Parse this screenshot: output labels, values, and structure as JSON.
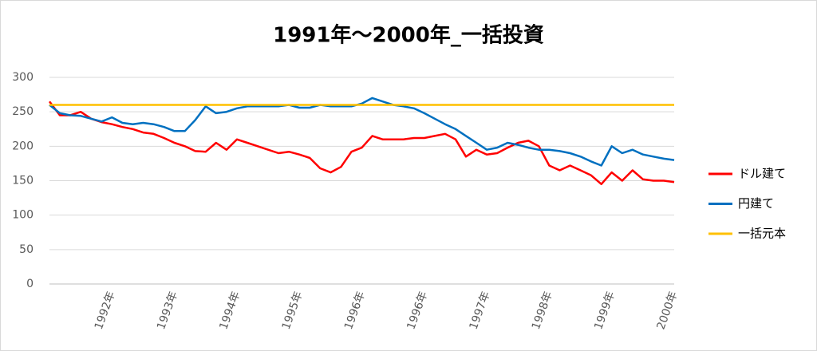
{
  "chart_data": {
    "type": "line",
    "title": "1991年～2000年_一括投資",
    "categories": [
      null,
      null,
      null,
      null,
      null,
      null,
      "1992年",
      null,
      null,
      null,
      null,
      null,
      "1993年",
      null,
      null,
      null,
      null,
      null,
      "1994年",
      null,
      null,
      null,
      null,
      null,
      "1995年",
      null,
      null,
      null,
      null,
      null,
      "1996年",
      null,
      null,
      null,
      null,
      null,
      "1996年",
      null,
      null,
      null,
      null,
      null,
      "1997年",
      null,
      null,
      null,
      null,
      null,
      "1998年",
      null,
      null,
      null,
      null,
      null,
      "1999年",
      null,
      null,
      null,
      null,
      null,
      "2000年"
    ],
    "series": [
      {
        "name": "ドル建て",
        "color": "#ff0000",
        "values": [
          265,
          245,
          245,
          250,
          240,
          235,
          232,
          228,
          225,
          220,
          218,
          212,
          205,
          200,
          193,
          192,
          205,
          195,
          210,
          205,
          200,
          195,
          190,
          192,
          188,
          183,
          168,
          162,
          170,
          192,
          198,
          215,
          210,
          210,
          210,
          212,
          212,
          215,
          218,
          210,
          185,
          195,
          188,
          190,
          198,
          205,
          208,
          200,
          172,
          165,
          172,
          165,
          158,
          145,
          162,
          150,
          165,
          152,
          150,
          150,
          148
        ]
      },
      {
        "name": "円建て",
        "color": "#0070c0",
        "values": [
          260,
          248,
          245,
          244,
          240,
          236,
          242,
          234,
          232,
          234,
          232,
          228,
          222,
          222,
          238,
          258,
          248,
          250,
          255,
          258,
          258,
          258,
          258,
          260,
          256,
          256,
          260,
          258,
          258,
          258,
          262,
          270,
          265,
          260,
          258,
          255,
          248,
          240,
          232,
          225,
          215,
          205,
          195,
          198,
          205,
          202,
          198,
          195,
          195,
          193,
          190,
          185,
          178,
          172,
          200,
          190,
          195,
          188,
          185,
          182,
          180
        ]
      },
      {
        "name": "一括元本",
        "color": "#ffc000",
        "values": [
          260,
          260,
          260,
          260,
          260,
          260,
          260,
          260,
          260,
          260,
          260,
          260,
          260,
          260,
          260,
          260,
          260,
          260,
          260,
          260,
          260,
          260,
          260,
          260,
          260,
          260,
          260,
          260,
          260,
          260,
          260,
          260,
          260,
          260,
          260,
          260,
          260,
          260,
          260,
          260,
          260,
          260,
          260,
          260,
          260,
          260,
          260,
          260,
          260,
          260,
          260,
          260,
          260,
          260,
          260,
          260,
          260,
          260,
          260,
          260,
          260
        ]
      }
    ],
    "ylim": [
      0,
      300
    ],
    "yticks": [
      0,
      50,
      100,
      150,
      200,
      250,
      300
    ],
    "grid": true,
    "legend": "right"
  }
}
